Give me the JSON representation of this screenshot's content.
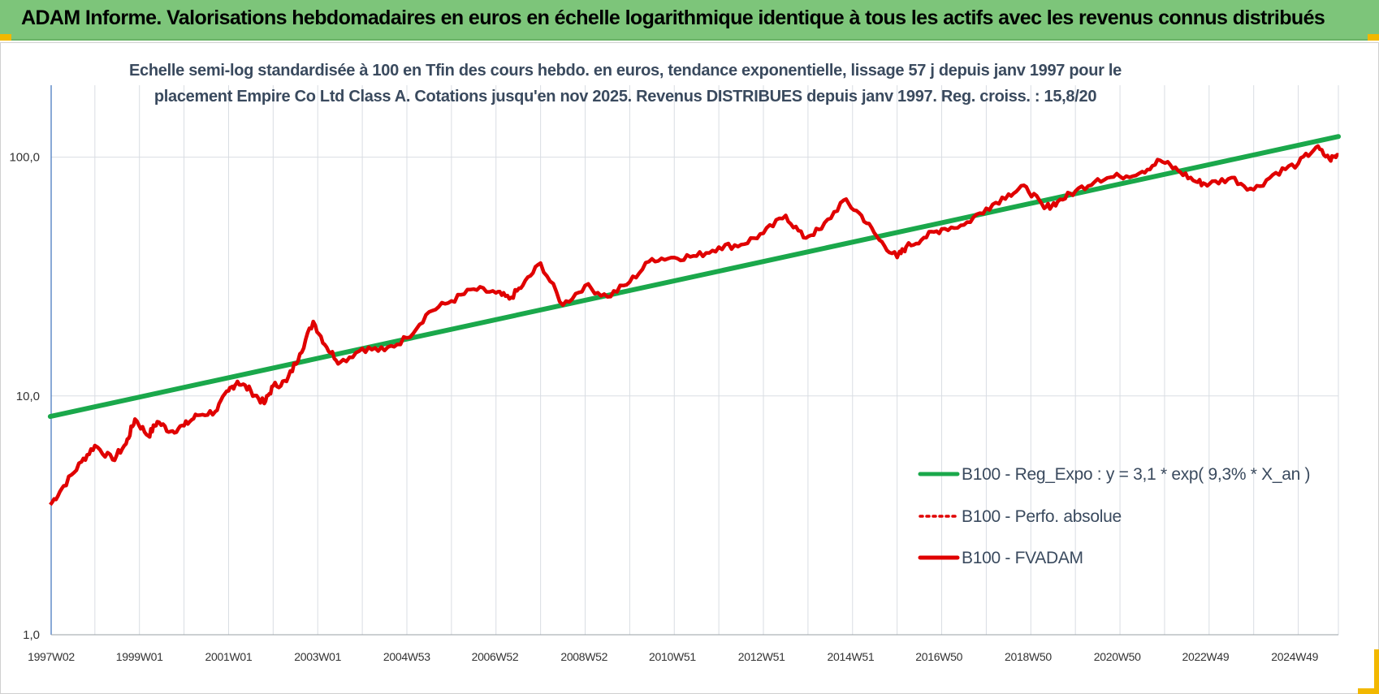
{
  "header": {
    "title": "ADAM Informe. Valorisations hebdomadaires en euros en échelle logarithmique identique à tous les actifs avec les revenus connus distribués"
  },
  "chart_data": {
    "type": "line",
    "title_line1": "Echelle semi-log standardisée à 100 en Tfin des cours hebdo. en euros, tendance exponentielle, lissage 57 j depuis janv 1997 pour le",
    "title_line2": "placement Empire Co Ltd Class A. Cotations jusqu'en nov 2025. Revenus DISTRIBUES depuis janv 1997. Reg. croiss. : 15,8/20",
    "y_scale": "log",
    "ylim": [
      1,
      200
    ],
    "y_ticks": [
      {
        "value": 1,
        "label": "1,0"
      },
      {
        "value": 10,
        "label": "10,0"
      },
      {
        "value": 100,
        "label": "100,0"
      }
    ],
    "x_ticks": [
      "1997W02",
      "1999W01",
      "2001W01",
      "2003W01",
      "2004W53",
      "2006W52",
      "2008W52",
      "2010W51",
      "2012W51",
      "2014W51",
      "2016W50",
      "2018W50",
      "2020W50",
      "2022W49",
      "2024W49"
    ],
    "xlim": [
      "1997W02",
      "2025W48"
    ],
    "grid": true,
    "legend_position": "lower-right",
    "colors": {
      "regression": "#1aa84b",
      "perfo": "#e00000",
      "fvadam": "#e00000"
    },
    "series": [
      {
        "name": "B100 - Reg_Expo : y = 3,1 * exp( 9,3% *  X_an )",
        "style": "solid-thick",
        "x_year": [
          1997.0,
          2025.9
        ],
        "y": [
          8.2,
          122
        ]
      },
      {
        "name": "B100 - Perfo. absolue",
        "style": "dotted",
        "x_year": [],
        "y": []
      },
      {
        "name": "B100 - FVADAM",
        "style": "solid-thick",
        "x_year": [
          1997.0,
          1997.3,
          1997.7,
          1998.0,
          1998.4,
          1998.7,
          1998.9,
          1999.2,
          1999.4,
          1999.7,
          2000.0,
          2000.3,
          2000.7,
          2001.0,
          2001.2,
          2001.5,
          2001.8,
          2002.0,
          2002.3,
          2002.6,
          2002.9,
          2003.2,
          2003.5,
          2004.0,
          2004.5,
          2005.0,
          2005.5,
          2006.0,
          2006.5,
          2007.0,
          2007.3,
          2007.6,
          2008.0,
          2008.5,
          2009.0,
          2009.5,
          2010.0,
          2010.5,
          2011.0,
          2011.5,
          2012.0,
          2012.5,
          2013.0,
          2013.5,
          2013.9,
          2014.3,
          2014.8,
          2015.2,
          2015.6,
          2016.0,
          2016.2,
          2016.6,
          2017.0,
          2017.5,
          2018.0,
          2018.5,
          2018.9,
          2019.3,
          2019.6,
          2020.0,
          2020.5,
          2021.0,
          2021.5,
          2021.9,
          2022.3,
          2022.7,
          2023.0,
          2023.5,
          2024.0,
          2024.5,
          2025.0,
          2025.4,
          2025.7,
          2025.9
        ],
        "y": [
          3.5,
          4.2,
          5.3,
          6.2,
          5.4,
          6.3,
          8.0,
          6.8,
          7.8,
          7.1,
          7.5,
          8.3,
          8.6,
          10.5,
          11.5,
          10.5,
          9.3,
          11.0,
          11.5,
          15.0,
          20.5,
          16.0,
          13.8,
          15.8,
          15.5,
          17.5,
          22.5,
          25.0,
          28.0,
          27.0,
          25.5,
          29.0,
          36.0,
          24.0,
          29.0,
          26.0,
          30.0,
          37.5,
          38.0,
          38.5,
          42.0,
          43.0,
          48.0,
          57.0,
          46.0,
          50.0,
          66.0,
          57.0,
          45.0,
          38.0,
          42.0,
          46.0,
          50.0,
          52.0,
          61.0,
          70.0,
          75.0,
          61.0,
          65.0,
          72.0,
          81.0,
          83.0,
          87.0,
          97.0,
          88.0,
          79.0,
          77.0,
          82.0,
          73.0,
          86.0,
          94.0,
          110.0,
          98.0,
          102.0
        ]
      }
    ]
  }
}
